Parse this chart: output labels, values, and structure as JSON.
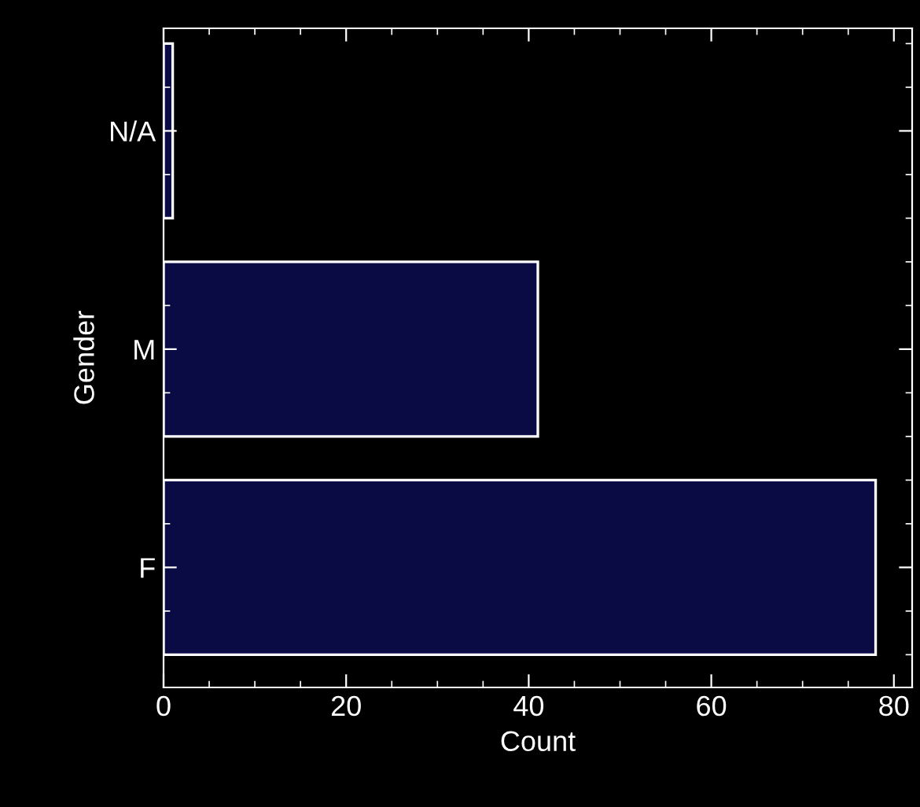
{
  "chart_data": {
    "type": "bar",
    "orientation": "horizontal",
    "xlabel": "Count",
    "ylabel": "Gender",
    "categories": [
      "N/A",
      "M",
      "F"
    ],
    "values": [
      1,
      41,
      78
    ],
    "color": "#0a0a45",
    "xlim": [
      0,
      82
    ],
    "xticks": [
      0,
      20,
      40,
      60,
      80
    ],
    "grid": false,
    "legend": false
  }
}
